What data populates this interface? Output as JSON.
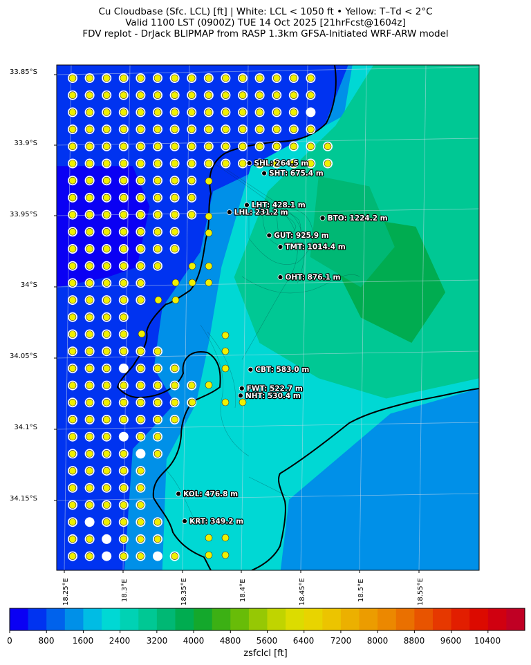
{
  "title": {
    "line1": "Cu Cloudbase (Sfc. LCL) [ft]  |  White: LCL < 1050 ft • Yellow: T–Td < 2°C",
    "line2": "Valid 1100 LST (0900Z) TUE 14 Oct 2025 [21hrFcst@1604z]",
    "line3": "FDV replot - DrJack BLIPMAP from RASP 1.3km GFSA-Initiated WRF-ARW model"
  },
  "axes": {
    "lat_labels": [
      "33.85°S",
      "33.9°S",
      "33.95°S",
      "34°S",
      "34.05°S",
      "34.1°S",
      "34.15°S"
    ],
    "lon_labels": [
      "18.25°E",
      "18.3°E",
      "18.35°E",
      "18.4°E",
      "18.45°E",
      "18.5°E",
      "18.55°E"
    ]
  },
  "stations": [
    {
      "code": "SHL",
      "label": "SHL: 264.5 m",
      "lon": 18.385,
      "lat": -33.908
    },
    {
      "code": "SHT",
      "label": "SHT: 675.4 m",
      "lon": 18.397,
      "lat": -33.915
    },
    {
      "code": "LHT",
      "label": "LHT: 428.1 m",
      "lon": 18.383,
      "lat": -33.937
    },
    {
      "code": "LHL",
      "label": "LHL: 231.2 m",
      "lon": 18.369,
      "lat": -33.942
    },
    {
      "code": "BTO",
      "label": "BTO: 1224.2 m",
      "lon": 18.444,
      "lat": -33.946
    },
    {
      "code": "GUT",
      "label": "GUT: 925.9 m",
      "lon": 18.401,
      "lat": -33.958
    },
    {
      "code": "TMT",
      "label": "TMT: 1014.4 m",
      "lon": 18.41,
      "lat": -33.966
    },
    {
      "code": "OHT",
      "label": "OHT: 876.1 m",
      "lon": 18.41,
      "lat": -33.987
    },
    {
      "code": "CBT",
      "label": "CBT: 583.0 m",
      "lon": 18.386,
      "lat": -34.051
    },
    {
      "code": "FWT",
      "label": "FWT: 522.7 m",
      "lon": 18.379,
      "lat": -34.064
    },
    {
      "code": "NHT",
      "label": "NHT: 530.4 m",
      "lon": 18.378,
      "lat": -34.069
    },
    {
      "code": "KOL",
      "label": "KOL: 476.8 m",
      "lon": 18.328,
      "lat": -34.137
    },
    {
      "code": "KRT",
      "label": "KRT: 349.2 m",
      "lon": 18.333,
      "lat": -34.156
    }
  ],
  "colorbar": {
    "ticks": [
      "0",
      "800",
      "1600",
      "2400",
      "3200",
      "4000",
      "4800",
      "5600",
      "6400",
      "7200",
      "8000",
      "8800",
      "9600",
      "10400"
    ],
    "label": "zsfclcl [ft]",
    "min": 0,
    "max": 11200,
    "step": 400,
    "colors": [
      "#0a00f4",
      "#0033f0",
      "#0062ec",
      "#0090e8",
      "#00bce4",
      "#00d8d4",
      "#00d2b4",
      "#00c894",
      "#00b874",
      "#00ac50",
      "#14a82c",
      "#3cb014",
      "#68bc08",
      "#96c804",
      "#c0d400",
      "#dcdc00",
      "#e8d400",
      "#ecc400",
      "#ecb000",
      "#ec9c00",
      "#ec8800",
      "#ea7000",
      "#e85400",
      "#e63800",
      "#e21e00",
      "#dc0a00",
      "#d00010",
      "#c00024"
    ]
  },
  "map": {
    "lon_range": [
      18.23,
      18.57
    ],
    "lat_range": [
      -34.19,
      -33.84
    ],
    "colors": {
      "sea_deep": "#0a00f4",
      "sea": "#0033f0",
      "coast": "#0090e8",
      "lowland": "#00d8d4",
      "hills": "#00c894",
      "peak": "#00ac50",
      "outline": "#000000"
    },
    "markers": {
      "white": "LCL < 1050 ft",
      "yellow": "T–Td < 2°C"
    }
  }
}
